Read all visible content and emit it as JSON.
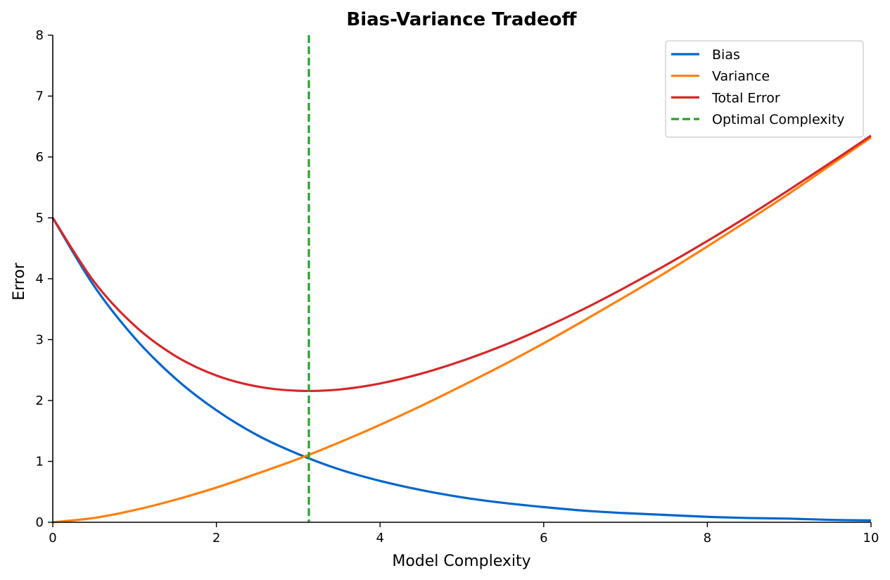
{
  "chart_data": {
    "type": "line",
    "title": "Bias-Variance Tradeoff",
    "xlabel": "Model Complexity",
    "ylabel": "Error",
    "xlim": [
      0,
      10
    ],
    "ylim": [
      0,
      8
    ],
    "x_ticks": [
      "0",
      "2",
      "4",
      "6",
      "8",
      "10"
    ],
    "y_ticks": [
      "0",
      "1",
      "2",
      "3",
      "4",
      "5",
      "6",
      "7",
      "8"
    ],
    "grid": false,
    "legend_position": "top-right",
    "x": [
      0,
      0.5,
      1,
      1.5,
      2,
      2.5,
      3,
      3.5,
      4,
      4.5,
      5,
      5.5,
      6,
      6.5,
      7,
      7.5,
      8,
      8.5,
      9,
      9.5,
      10
    ],
    "series": [
      {
        "name": "Bias",
        "color": "#0066cc",
        "style": "solid",
        "values": [
          5.0,
          3.89,
          3.03,
          2.36,
          1.84,
          1.43,
          1.12,
          0.87,
          0.68,
          0.53,
          0.41,
          0.32,
          0.25,
          0.19,
          0.15,
          0.12,
          0.09,
          0.07,
          0.06,
          0.04,
          0.03
        ]
      },
      {
        "name": "Variance",
        "color": "#ff7f0e",
        "style": "solid",
        "values": [
          0.0,
          0.07,
          0.2,
          0.37,
          0.57,
          0.8,
          1.04,
          1.31,
          1.6,
          1.91,
          2.24,
          2.58,
          2.94,
          3.32,
          3.71,
          4.11,
          4.53,
          4.96,
          5.4,
          5.86,
          6.32
        ]
      },
      {
        "name": "Total Error",
        "color": "#d62728",
        "style": "solid",
        "values": [
          5.0,
          3.96,
          3.23,
          2.73,
          2.41,
          2.23,
          2.16,
          2.18,
          2.28,
          2.44,
          2.65,
          2.9,
          3.19,
          3.51,
          3.86,
          4.23,
          4.62,
          5.03,
          5.46,
          5.9,
          6.35
        ]
      }
    ],
    "vlines": [
      {
        "name": "Optimal Complexity",
        "x": 3.13,
        "color": "#2ca02c",
        "style": "dashed"
      }
    ]
  }
}
